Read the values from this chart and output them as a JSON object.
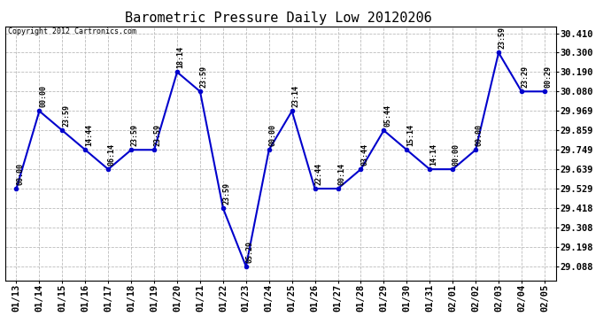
{
  "title": "Barometric Pressure Daily Low 20120206",
  "copyright": "Copyright 2012 Cartronics.com",
  "x_labels": [
    "01/13",
    "01/14",
    "01/15",
    "01/16",
    "01/17",
    "01/18",
    "01/19",
    "01/20",
    "01/21",
    "01/22",
    "01/23",
    "01/24",
    "01/25",
    "01/26",
    "01/27",
    "01/28",
    "01/29",
    "01/30",
    "01/31",
    "02/01",
    "02/02",
    "02/03",
    "02/04",
    "02/05"
  ],
  "y_values": [
    29.529,
    29.969,
    29.859,
    29.749,
    29.639,
    29.749,
    29.749,
    30.19,
    30.08,
    29.418,
    29.088,
    29.749,
    29.969,
    29.529,
    29.529,
    29.639,
    29.859,
    29.749,
    29.639,
    29.639,
    29.749,
    30.3,
    30.08,
    30.08
  ],
  "point_labels": [
    "00:00",
    "00:00",
    "23:59",
    "14:44",
    "06:14",
    "23:59",
    "23:59",
    "18:14",
    "23:59",
    "23:59",
    "05:29",
    "00:00",
    "23:14",
    "22:44",
    "00:14",
    "03:44",
    "05:44",
    "15:14",
    "14:14",
    "00:00",
    "00:00",
    "23:59",
    "23:29",
    "00:29"
  ],
  "line_color": "#0000cc",
  "marker_color": "#0000cc",
  "background_color": "#ffffff",
  "grid_color": "#bbbbbb",
  "title_fontsize": 11,
  "label_fontsize": 7.5,
  "point_label_fontsize": 6,
  "ylim_min": 29.008,
  "ylim_max": 30.448,
  "yticks": [
    29.088,
    29.198,
    29.308,
    29.418,
    29.529,
    29.639,
    29.749,
    29.859,
    29.969,
    30.08,
    30.19,
    30.3,
    30.41
  ]
}
